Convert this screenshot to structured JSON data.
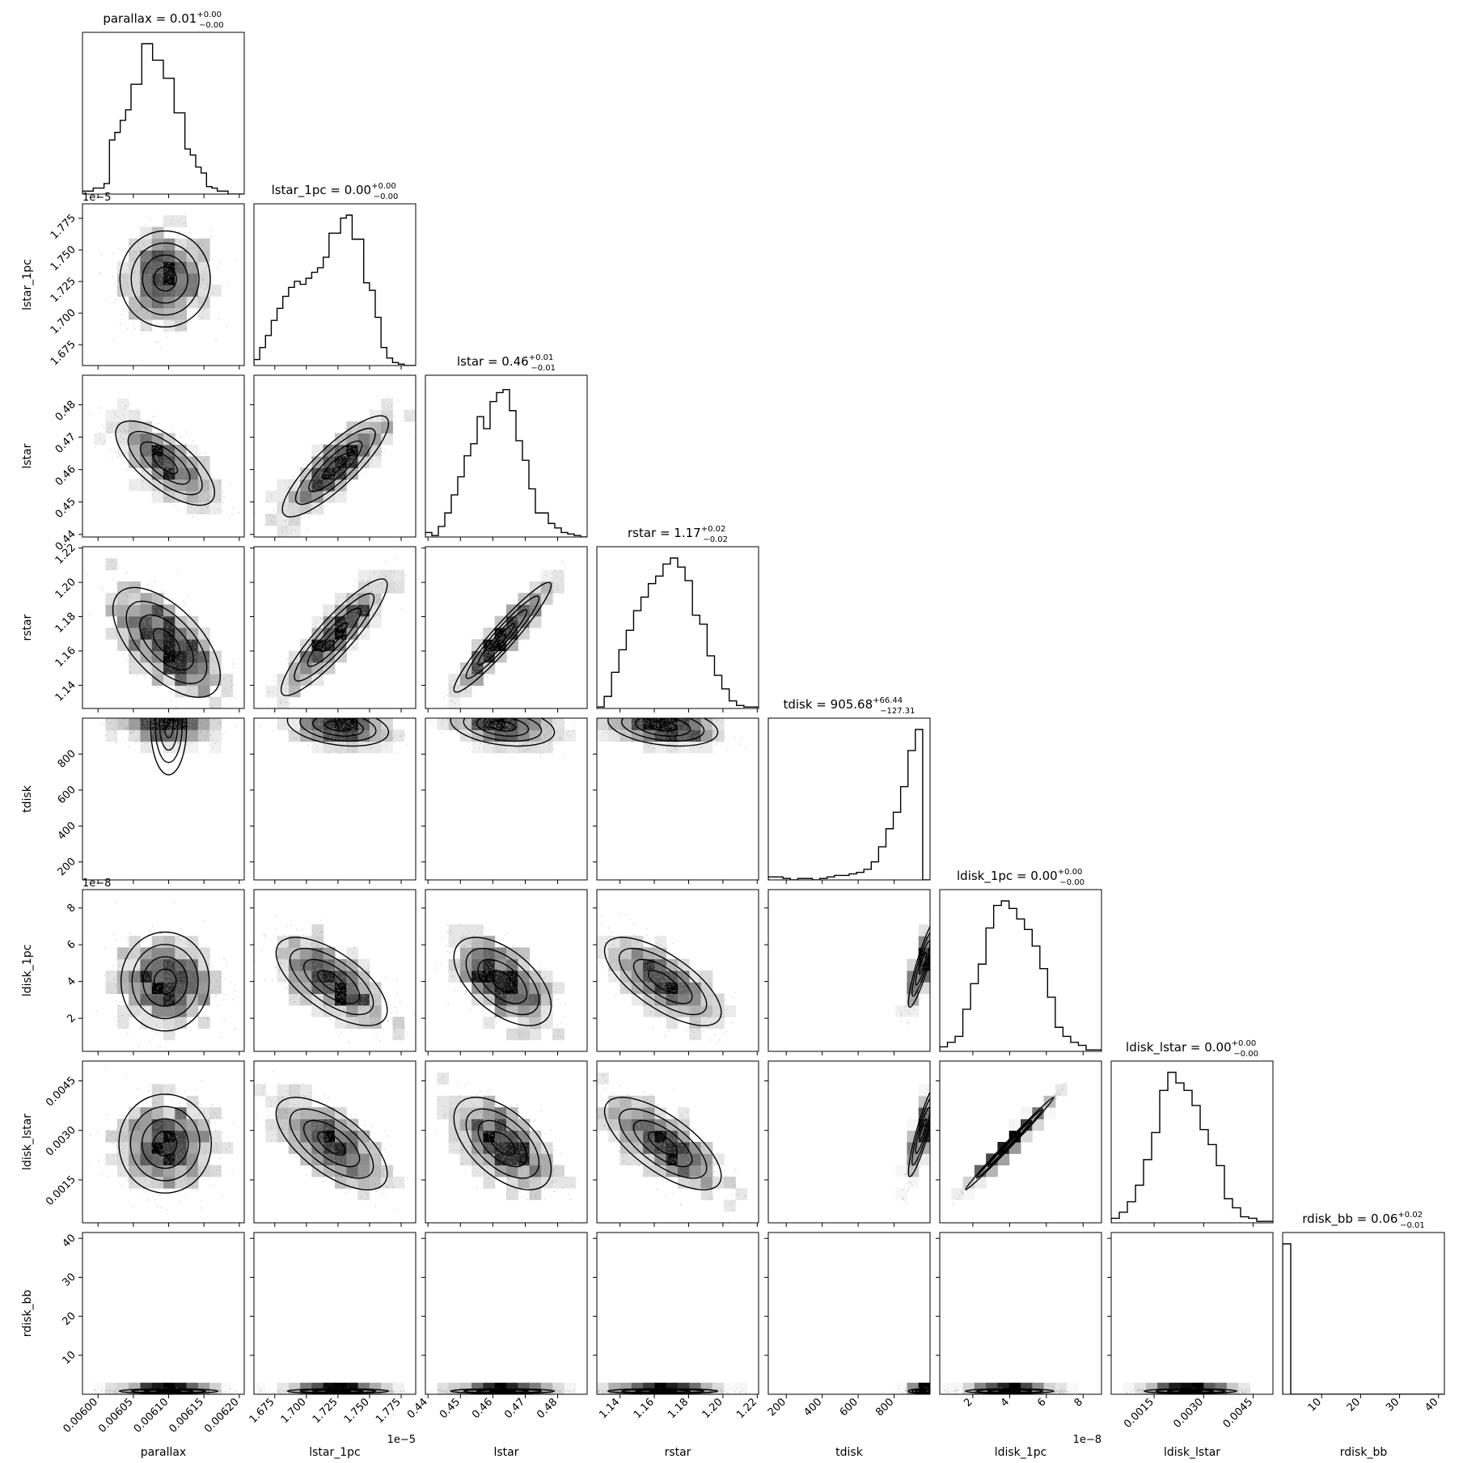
{
  "chart_data": {
    "type": "corner",
    "parameters": [
      "parallax",
      "lstar_1pc",
      "lstar",
      "rstar",
      "tdisk",
      "ldisk_1pc",
      "ldisk_lstar",
      "rdisk_bb"
    ],
    "titles": [
      {
        "name": "parallax",
        "value": "0.01",
        "plus": "+0.00",
        "minus": "−0.00"
      },
      {
        "name": "lstar_1pc",
        "value": "0.00",
        "plus": "+0.00",
        "minus": "−0.00"
      },
      {
        "name": "lstar",
        "value": "0.46",
        "plus": "+0.01",
        "minus": "−0.01"
      },
      {
        "name": "rstar",
        "value": "1.17",
        "plus": "+0.02",
        "minus": "−0.02"
      },
      {
        "name": "tdisk",
        "value": "905.68",
        "plus": "+66.44",
        "minus": "−127.31"
      },
      {
        "name": "ldisk_1pc",
        "value": "0.00",
        "plus": "+0.00",
        "minus": "−0.00"
      },
      {
        "name": "ldisk_lstar",
        "value": "0.00",
        "plus": "+0.00",
        "minus": "−0.00"
      },
      {
        "name": "rdisk_bb",
        "value": "0.06",
        "plus": "+0.02",
        "minus": "−0.01"
      }
    ],
    "axes": [
      {
        "name": "parallax",
        "range": [
          0.005978,
          0.006207
        ],
        "ticks": [
          0.006,
          0.00605,
          0.0061,
          0.00615,
          0.0062
        ],
        "tick_labels": [
          "0.00600",
          "0.00605",
          "0.00610",
          "0.00615",
          "0.00620"
        ],
        "y_tick_labels": [],
        "offset": ""
      },
      {
        "name": "lstar_1pc",
        "range": [
          1.6585,
          1.7865
        ],
        "ticks": [
          1.675,
          1.7,
          1.725,
          1.75,
          1.775
        ],
        "tick_labels": [
          "1.675",
          "1.700",
          "1.725",
          "1.750",
          "1.775"
        ],
        "offset": "1e−5"
      },
      {
        "name": "lstar",
        "range": [
          0.4392,
          0.4891
        ],
        "ticks": [
          0.44,
          0.45,
          0.46,
          0.47,
          0.48
        ],
        "tick_labels": [
          "0.44",
          "0.45",
          "0.46",
          "0.47",
          "0.48"
        ],
        "offset": ""
      },
      {
        "name": "rstar",
        "range": [
          1.1265,
          1.2208
        ],
        "ticks": [
          1.14,
          1.16,
          1.18,
          1.2,
          1.22
        ],
        "tick_labels": [
          "1.14",
          "1.16",
          "1.18",
          "1.20",
          "1.22"
        ],
        "offset": ""
      },
      {
        "name": "tdisk",
        "range": [
          100,
          1000
        ],
        "ticks": [
          200,
          400,
          600,
          800
        ],
        "tick_labels": [
          "200",
          "400",
          "600",
          "800"
        ],
        "offset": ""
      },
      {
        "name": "ldisk_1pc",
        "range": [
          0.2,
          9.0
        ],
        "ticks": [
          2,
          4,
          6,
          8
        ],
        "tick_labels": [
          "2",
          "4",
          "6",
          "8"
        ],
        "offset": "1e−8"
      },
      {
        "name": "ldisk_lstar",
        "range": [
          0.0002,
          0.0051
        ],
        "ticks": [
          0.0015,
          0.003,
          0.0045
        ],
        "tick_labels": [
          "0.0015",
          "0.0030",
          "0.0045"
        ],
        "offset": ""
      },
      {
        "name": "rdisk_bb",
        "range": [
          0,
          41.5
        ],
        "ticks": [
          10,
          20,
          30,
          40
        ],
        "tick_labels": [
          "10",
          "20",
          "30",
          "40"
        ],
        "offset": ""
      }
    ],
    "histograms": [
      [
        0.02,
        0.02,
        0.04,
        0.04,
        0.07,
        0.36,
        0.41,
        0.49,
        0.56,
        0.73,
        0.73,
        1.0,
        1.0,
        0.89,
        0.89,
        0.77,
        0.77,
        0.54,
        0.54,
        0.3,
        0.26,
        0.18,
        0.14,
        0.05,
        0.04,
        0.02,
        0.02,
        0.0,
        0.0,
        0.0
      ],
      [
        0.04,
        0.12,
        0.2,
        0.3,
        0.38,
        0.46,
        0.52,
        0.56,
        0.54,
        0.58,
        0.62,
        0.65,
        0.72,
        0.88,
        0.88,
        0.98,
        1.0,
        0.84,
        0.84,
        0.55,
        0.5,
        0.32,
        0.12,
        0.05,
        0.02,
        0.01,
        0.0,
        0.0
      ],
      [
        0.03,
        0.01,
        0.07,
        0.16,
        0.28,
        0.4,
        0.54,
        0.62,
        0.8,
        0.72,
        0.9,
        0.96,
        0.98,
        0.84,
        0.64,
        0.51,
        0.32,
        0.16,
        0.16,
        0.09,
        0.06,
        0.03,
        0.02,
        0.01,
        0.0
      ],
      [
        0.01,
        0.08,
        0.24,
        0.39,
        0.52,
        0.65,
        0.74,
        0.83,
        0.88,
        0.96,
        1.0,
        0.94,
        0.85,
        0.62,
        0.56,
        0.35,
        0.22,
        0.13,
        0.05,
        0.02,
        0.01,
        0.01
      ],
      [
        0.02,
        0.02,
        0.01,
        0.0,
        0.01,
        0.01,
        0.0,
        0.01,
        0.02,
        0.03,
        0.03,
        0.04,
        0.05,
        0.07,
        0.12,
        0.22,
        0.34,
        0.45,
        0.62,
        0.86,
        1.0,
        0.0
      ],
      [
        0.03,
        0.06,
        0.1,
        0.28,
        0.45,
        0.58,
        0.82,
        0.97,
        1.0,
        0.95,
        0.88,
        0.81,
        0.7,
        0.55,
        0.36,
        0.16,
        0.1,
        0.06,
        0.04,
        0.01,
        0.01
      ],
      [
        0.03,
        0.07,
        0.14,
        0.25,
        0.42,
        0.6,
        0.88,
        1.0,
        0.93,
        0.88,
        0.78,
        0.62,
        0.52,
        0.38,
        0.16,
        0.1,
        0.04,
        0.03,
        0.01,
        0.01
      ],
      [
        1.0,
        0.0,
        0.0,
        0.0,
        0.0,
        0.0,
        0.0,
        0.0,
        0.0,
        0.0,
        0.0,
        0.0,
        0.0,
        0.0,
        0.0,
        0.0,
        0.0,
        0.0,
        0.0,
        0.0
      ]
    ],
    "pairs": {
      "1,0": {
        "mean": [
          0.006095,
          1.727
        ],
        "sd": [
          3.2e-05,
          0.019
        ],
        "rho": 0.0
      },
      "2,0": {
        "mean": [
          0.006095,
          0.462
        ],
        "sd": [
          3.5e-05,
          0.0065
        ],
        "rho": -0.7
      },
      "2,1": {
        "mean": [
          1.723,
          0.461
        ],
        "sd": [
          0.021,
          0.0078
        ],
        "rho": 0.85
      },
      "3,0": {
        "mean": [
          0.006097,
          1.165
        ],
        "sd": [
          3.8e-05,
          0.016
        ],
        "rho": -0.6
      },
      "3,1": {
        "mean": [
          1.722,
          1.168
        ],
        "sd": [
          0.021,
          0.017
        ],
        "rho": 0.9
      },
      "3,2": {
        "mean": [
          0.463,
          1.168
        ],
        "sd": [
          0.0075,
          0.016
        ],
        "rho": 0.95
      },
      "4,0": {
        "mean": [
          0.0061,
          960
        ],
        "sd": [
          3.5e-05,
          50
        ],
        "rho": 0.0
      },
      "4,1": {
        "mean": [
          1.725,
          955
        ],
        "sd": [
          0.02,
          55
        ],
        "rho": -0.3
      },
      "4,2": {
        "mean": [
          0.463,
          955
        ],
        "sd": [
          0.008,
          55
        ],
        "rho": -0.3
      },
      "4,3": {
        "mean": [
          1.165,
          955
        ],
        "sd": [
          0.016,
          55
        ],
        "rho": -0.3
      },
      "5,0": {
        "mean": [
          0.006095,
          4.0
        ],
        "sd": [
          3.5e-05,
          1.2
        ],
        "rho": 0.0
      },
      "5,1": {
        "mean": [
          1.72,
          4.0
        ],
        "sd": [
          0.022,
          1.2
        ],
        "rho": -0.65
      },
      "5,2": {
        "mean": [
          0.463,
          4.0
        ],
        "sd": [
          0.0075,
          1.2
        ],
        "rho": -0.55
      },
      "5,3": {
        "mean": [
          1.165,
          4.0
        ],
        "sd": [
          0.017,
          1.2
        ],
        "rho": -0.7
      },
      "5,4": {
        "mean": [
          960,
          5.0
        ],
        "sd": [
          40,
          1.2
        ],
        "rho": 0.9
      },
      "6,0": {
        "mean": [
          0.006095,
          0.0026
        ],
        "sd": [
          3.5e-05,
          0.0007
        ],
        "rho": 0.0
      },
      "6,1": {
        "mean": [
          1.72,
          0.0026
        ],
        "sd": [
          0.022,
          0.0007
        ],
        "rho": -0.65
      },
      "6,2": {
        "mean": [
          0.463,
          0.0026
        ],
        "sd": [
          0.0075,
          0.0007
        ],
        "rho": -0.55
      },
      "6,3": {
        "mean": [
          1.165,
          0.0026
        ],
        "sd": [
          0.017,
          0.0007
        ],
        "rho": -0.7
      },
      "6,4": {
        "mean": [
          960,
          0.003
        ],
        "sd": [
          40,
          0.0007
        ],
        "rho": 0.9
      },
      "6,5": {
        "mean": [
          4.0,
          0.0026
        ],
        "sd": [
          1.2,
          0.0007
        ],
        "rho": 0.995
      },
      "7,0": {
        "mean": [
          0.0061,
          0.8
        ],
        "sd": [
          3.5e-05,
          0.3
        ],
        "rho": 0.0
      },
      "7,1": {
        "mean": [
          1.725,
          0.8
        ],
        "sd": [
          0.02,
          0.3
        ],
        "rho": 0.0
      },
      "7,2": {
        "mean": [
          0.463,
          0.8
        ],
        "sd": [
          0.008,
          0.3
        ],
        "rho": 0.0
      },
      "7,3": {
        "mean": [
          1.165,
          0.8
        ],
        "sd": [
          0.016,
          0.3
        ],
        "rho": 0.0
      },
      "7,4": {
        "mean": [
          960,
          0.8
        ],
        "sd": [
          40,
          0.3
        ],
        "rho": 0.0
      },
      "7,5": {
        "mean": [
          4.0,
          0.8
        ],
        "sd": [
          1.2,
          0.3
        ],
        "rho": 0.0
      },
      "7,6": {
        "mean": [
          0.0026,
          0.8
        ],
        "sd": [
          0.0007,
          0.3
        ],
        "rho": 0.0
      }
    }
  }
}
